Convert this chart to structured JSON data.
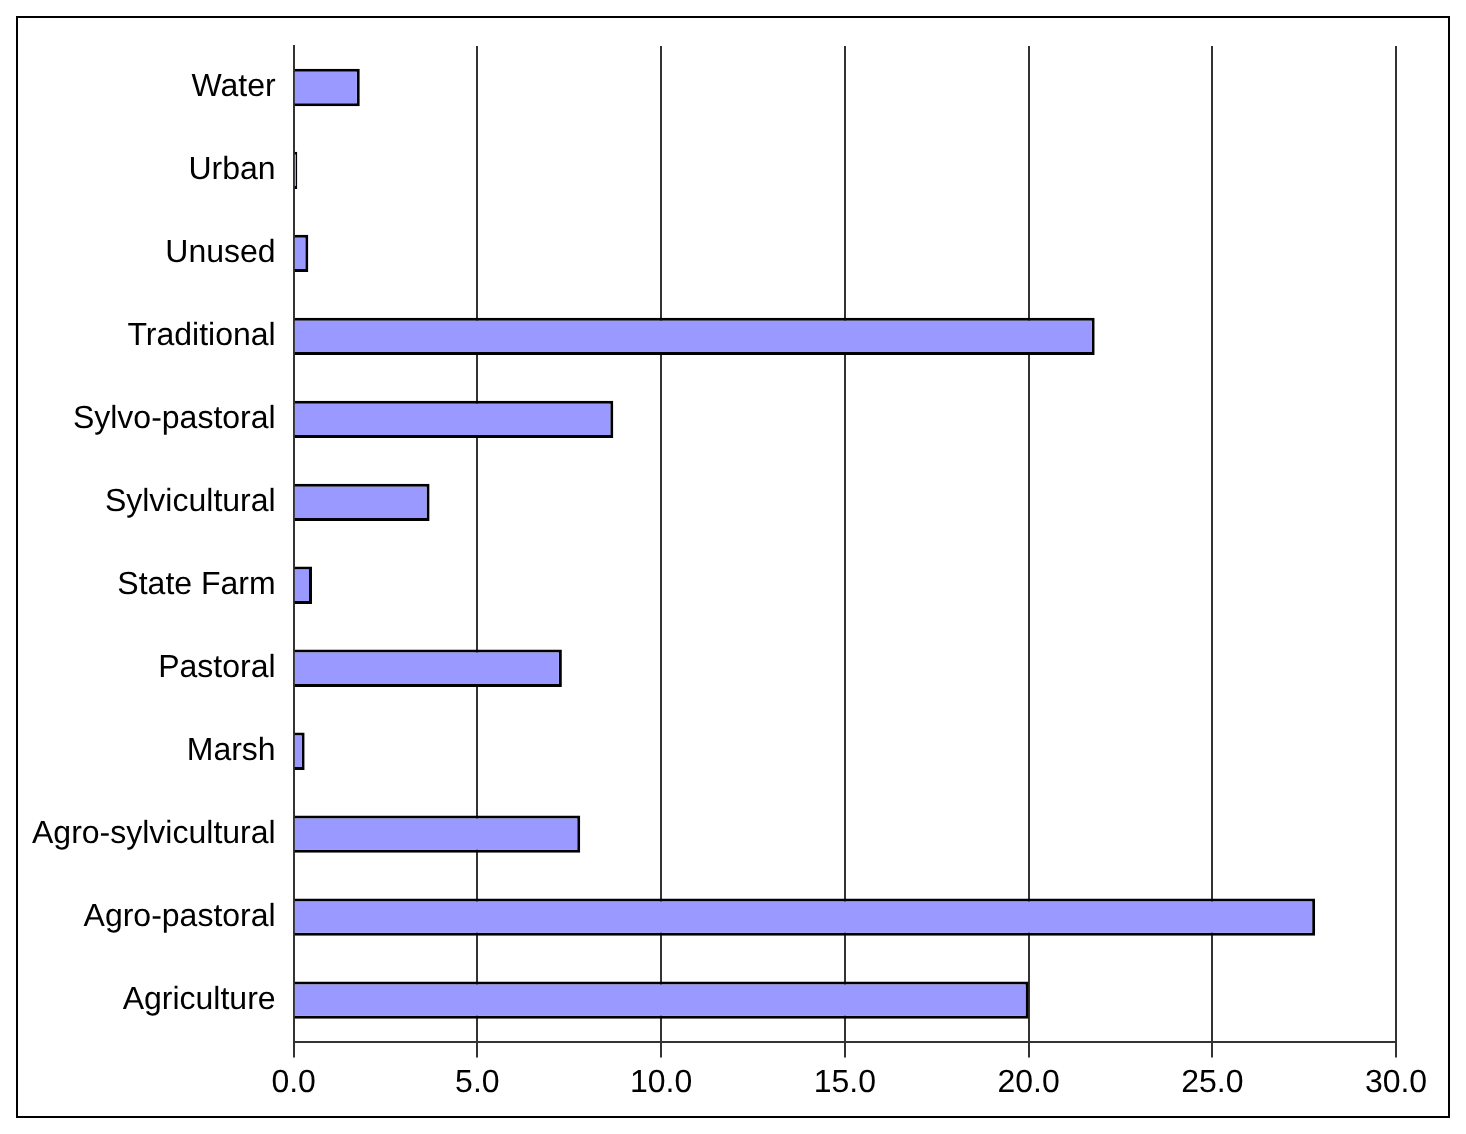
{
  "chart_data": {
    "type": "bar",
    "orientation": "horizontal",
    "categories": [
      "Water",
      "Urban",
      "Unused",
      "Traditional",
      "Sylvo-pastoral",
      "Sylvicultural",
      "State Farm",
      "Pastoral",
      "Marsh",
      "Agro-sylvicultural",
      "Agro-pastoral",
      "Agriculture"
    ],
    "values": [
      1.8,
      0.1,
      0.4,
      21.8,
      8.7,
      3.7,
      0.5,
      7.3,
      0.3,
      7.8,
      27.8,
      20.0
    ],
    "color": "#9999ff",
    "xlim": [
      0,
      30
    ],
    "xticks": [
      {
        "value": 0,
        "label": "0.0"
      },
      {
        "value": 5,
        "label": "5.0"
      },
      {
        "value": 10,
        "label": "10.0"
      },
      {
        "value": 15,
        "label": "15.0"
      },
      {
        "value": 20,
        "label": "20.0"
      },
      {
        "value": 25,
        "label": "25.0"
      },
      {
        "value": 30,
        "label": "30.0"
      }
    ],
    "grid": "x",
    "legend": false
  }
}
